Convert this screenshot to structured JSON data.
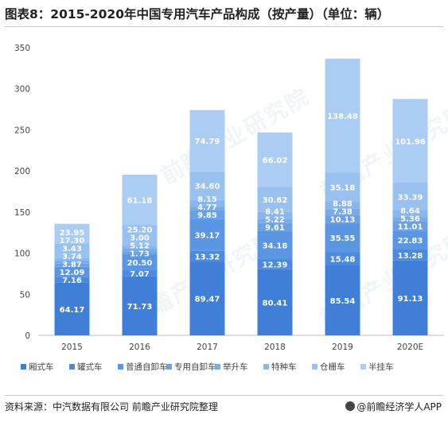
{
  "title": "图表8：2015-2020年中国专用汽车产品构成（按产量）（单位：辆）",
  "source": "资料来源：中汽数据有限公司 前瞻产业研究院整理",
  "brand": "@前瞻经济学人APP",
  "watermark": "前瞻产业研究院",
  "chart_data": {
    "type": "bar",
    "stacked": true,
    "categories": [
      "2015",
      "2016",
      "2017",
      "2018",
      "2019",
      "2020E"
    ],
    "ylim": [
      0,
      350
    ],
    "yticks": [
      0,
      50,
      100,
      150,
      200,
      250,
      300,
      350
    ],
    "grid": false,
    "legend_position": "bottom",
    "series": [
      {
        "name": "厢式车",
        "color": "#3f7fd8",
        "values": [
          64.17,
          71.73,
          89.47,
          80.41,
          85.54,
          91.13
        ]
      },
      {
        "name": "罐式车",
        "color": "#4b8ade",
        "values": [
          7.16,
          7.07,
          13.32,
          12.39,
          15.48,
          13.28
        ]
      },
      {
        "name": "普通自卸车",
        "color": "#5a96e2",
        "values": [
          12.09,
          20.5,
          39.17,
          34.18,
          35.55,
          22.83
        ]
      },
      {
        "name": "专用自卸车",
        "color": "#6aa1e6",
        "values": [
          3.87,
          1.73,
          9.85,
          9.61,
          10.13,
          11.01
        ]
      },
      {
        "name": "举升车",
        "color": "#79abe9",
        "values": [
          3.74,
          5.12,
          4.77,
          5.22,
          7.38,
          5.36
        ]
      },
      {
        "name": "特种车",
        "color": "#89b6ed",
        "values": [
          3.43,
          3.0,
          8.15,
          8.41,
          8.88,
          8.64
        ]
      },
      {
        "name": "仓栅车",
        "color": "#99c1f0",
        "values": [
          17.3,
          25.2,
          34.6,
          30.62,
          35.18,
          33.39
        ]
      },
      {
        "name": "半挂车",
        "color": "#abcdf3",
        "values": [
          23.95,
          61.18,
          74.79,
          66.02,
          138.48,
          101.96
        ]
      }
    ]
  }
}
